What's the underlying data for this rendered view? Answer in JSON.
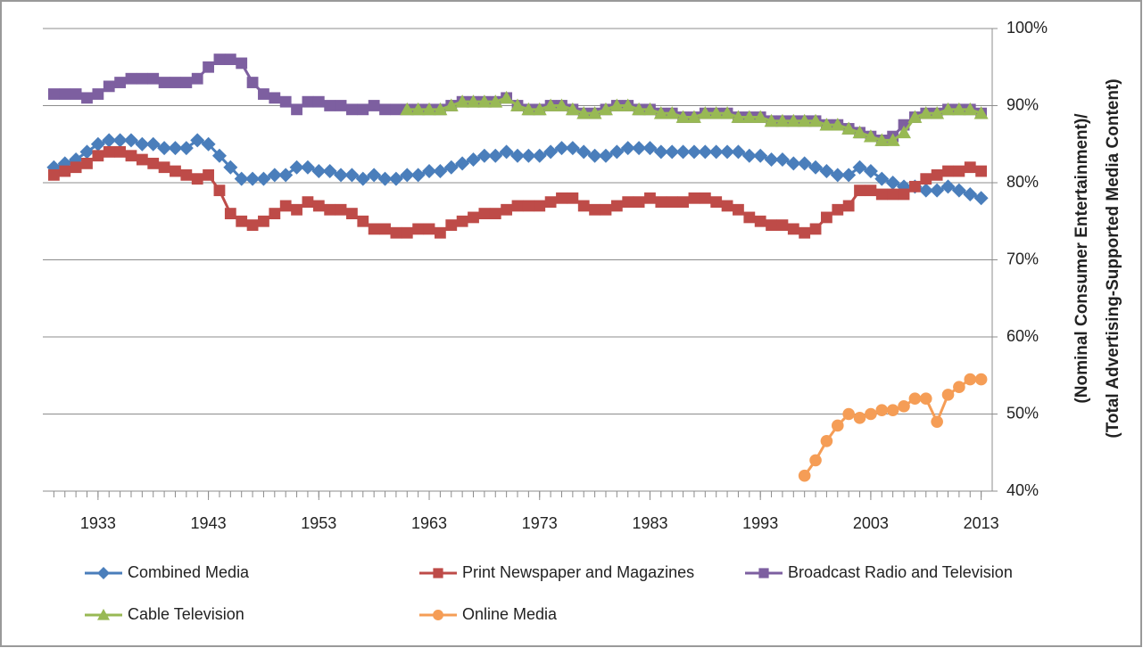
{
  "chart_data": {
    "type": "line",
    "y_label": [
      "(Nominal Consumer Entertainment)/",
      "(Total Advertising-Supported Media Content)"
    ],
    "x": [
      1929,
      1930,
      1931,
      1932,
      1933,
      1934,
      1935,
      1936,
      1937,
      1938,
      1939,
      1940,
      1941,
      1942,
      1943,
      1944,
      1945,
      1946,
      1947,
      1948,
      1949,
      1950,
      1951,
      1952,
      1953,
      1954,
      1955,
      1956,
      1957,
      1958,
      1959,
      1960,
      1961,
      1962,
      1963,
      1964,
      1965,
      1966,
      1967,
      1968,
      1969,
      1970,
      1971,
      1972,
      1973,
      1974,
      1975,
      1976,
      1977,
      1978,
      1979,
      1980,
      1981,
      1982,
      1983,
      1984,
      1985,
      1986,
      1987,
      1988,
      1989,
      1990,
      1991,
      1992,
      1993,
      1994,
      1995,
      1996,
      1997,
      1998,
      1999,
      2000,
      2001,
      2002,
      2003,
      2004,
      2005,
      2006,
      2007,
      2008,
      2009,
      2010,
      2011,
      2012,
      2013
    ],
    "xlim": [
      1928,
      2014
    ],
    "xticks": [
      1933,
      1943,
      1953,
      1963,
      1973,
      1983,
      1993,
      2003,
      2013
    ],
    "ylim": [
      40,
      100
    ],
    "yticks": [
      {
        "value": 40,
        "label": "40%"
      },
      {
        "value": 50,
        "label": "50%"
      },
      {
        "value": 60,
        "label": "60%"
      },
      {
        "value": 70,
        "label": "70%"
      },
      {
        "value": 80,
        "label": "80%"
      },
      {
        "value": 90,
        "label": "90%"
      },
      {
        "value": 100,
        "label": "100%"
      }
    ],
    "y_axis_side": "right",
    "grid": true,
    "legend": "bottom",
    "series": [
      {
        "name": "Combined Media",
        "color": "#4a7ebb",
        "marker": "diamond",
        "values": [
          82,
          82.5,
          83,
          84,
          85,
          85.5,
          85.5,
          85.5,
          85,
          85,
          84.5,
          84.5,
          84.5,
          85.5,
          85,
          83.5,
          82,
          80.5,
          80.5,
          80.5,
          81,
          81,
          82,
          82,
          81.5,
          81.5,
          81,
          81,
          80.5,
          81,
          80.5,
          80.5,
          81,
          81,
          81.5,
          81.5,
          82,
          82.5,
          83,
          83.5,
          83.5,
          84,
          83.5,
          83.5,
          83.5,
          84,
          84.5,
          84.5,
          84,
          83.5,
          83.5,
          84,
          84.5,
          84.5,
          84.5,
          84,
          84,
          84,
          84,
          84,
          84,
          84,
          84,
          83.5,
          83.5,
          83,
          83,
          82.5,
          82.5,
          82,
          81.5,
          81,
          81,
          82,
          81.5,
          80.5,
          80,
          79.5,
          79.5,
          79,
          79,
          79.5,
          79,
          78.5,
          78
        ]
      },
      {
        "name": "Print Newspaper and Magazines",
        "color": "#be4b48",
        "marker": "square",
        "values": [
          81,
          81.5,
          82,
          82.5,
          83.5,
          84,
          84,
          83.5,
          83,
          82.5,
          82,
          81.5,
          81,
          80.5,
          81,
          79,
          76,
          75,
          74.5,
          75,
          76,
          77,
          76.5,
          77.5,
          77,
          76.5,
          76.5,
          76,
          75,
          74,
          74,
          73.5,
          73.5,
          74,
          74,
          73.5,
          74.5,
          75,
          75.5,
          76,
          76,
          76.5,
          77,
          77,
          77,
          77.5,
          78,
          78,
          77,
          76.5,
          76.5,
          77,
          77.5,
          77.5,
          78,
          77.5,
          77.5,
          77.5,
          78,
          78,
          77.5,
          77,
          76.5,
          75.5,
          75,
          74.5,
          74.5,
          74,
          73.5,
          74,
          75.5,
          76.5,
          77,
          79,
          79,
          78.5,
          78.5,
          78.5,
          79.5,
          80.5,
          81,
          81.5,
          81.5,
          82,
          81.5
        ]
      },
      {
        "name": "Broadcast Radio and Television",
        "color": "#7d5fa0",
        "marker": "square",
        "values": [
          91.5,
          91.5,
          91.5,
          91,
          91.5,
          92.5,
          93,
          93.5,
          93.5,
          93.5,
          93,
          93,
          93,
          93.5,
          95,
          96,
          96,
          95.5,
          93,
          91.5,
          91,
          90.5,
          89.5,
          90.5,
          90.5,
          90,
          90,
          89.5,
          89.5,
          90,
          89.5,
          89.5,
          89.5,
          89.5,
          89.5,
          89.5,
          90,
          90.5,
          90.5,
          90.5,
          90.5,
          91,
          90,
          89.5,
          89.5,
          90,
          90,
          89.5,
          89,
          89,
          89.5,
          90,
          90,
          89.5,
          89.5,
          89,
          89,
          88.5,
          88.5,
          89,
          89,
          89,
          88.5,
          88.5,
          88.5,
          88,
          88,
          88,
          88,
          88,
          87.5,
          87.5,
          87,
          86.5,
          86,
          85.5,
          86,
          87.5,
          88.5,
          89,
          89,
          89.5,
          89.5,
          89.5,
          89
        ]
      },
      {
        "name": "Cable Television",
        "color": "#98b954",
        "marker": "triangle",
        "values": [
          null,
          null,
          null,
          null,
          null,
          null,
          null,
          null,
          null,
          null,
          null,
          null,
          null,
          null,
          null,
          null,
          null,
          null,
          null,
          null,
          null,
          null,
          null,
          null,
          null,
          null,
          null,
          null,
          null,
          null,
          null,
          null,
          89.5,
          89.5,
          89.5,
          89.5,
          90,
          90.5,
          90.5,
          90.5,
          90.5,
          91,
          90,
          89.5,
          89.5,
          90,
          90,
          89.5,
          89,
          89,
          89.5,
          90,
          90,
          89.5,
          89.5,
          89,
          89,
          88.5,
          88.5,
          89,
          89,
          89,
          88.5,
          88.5,
          88.5,
          88,
          88,
          88,
          88,
          88,
          87.5,
          87.5,
          87,
          86.5,
          86,
          85.5,
          85.5,
          86.5,
          88.5,
          89,
          89,
          89.5,
          89.5,
          89.5,
          89
        ]
      },
      {
        "name": "Online Media",
        "color": "#f59d56",
        "marker": "circle",
        "values": [
          null,
          null,
          null,
          null,
          null,
          null,
          null,
          null,
          null,
          null,
          null,
          null,
          null,
          null,
          null,
          null,
          null,
          null,
          null,
          null,
          null,
          null,
          null,
          null,
          null,
          null,
          null,
          null,
          null,
          null,
          null,
          null,
          null,
          null,
          null,
          null,
          null,
          null,
          null,
          null,
          null,
          null,
          null,
          null,
          null,
          null,
          null,
          null,
          null,
          null,
          null,
          null,
          null,
          null,
          null,
          null,
          null,
          null,
          null,
          null,
          null,
          null,
          null,
          null,
          null,
          null,
          null,
          null,
          42,
          44,
          46.5,
          48.5,
          50,
          49.5,
          50,
          50.5,
          50.5,
          51,
          52,
          52,
          49,
          52.5,
          53.5,
          54.5,
          54.5
        ]
      }
    ]
  }
}
